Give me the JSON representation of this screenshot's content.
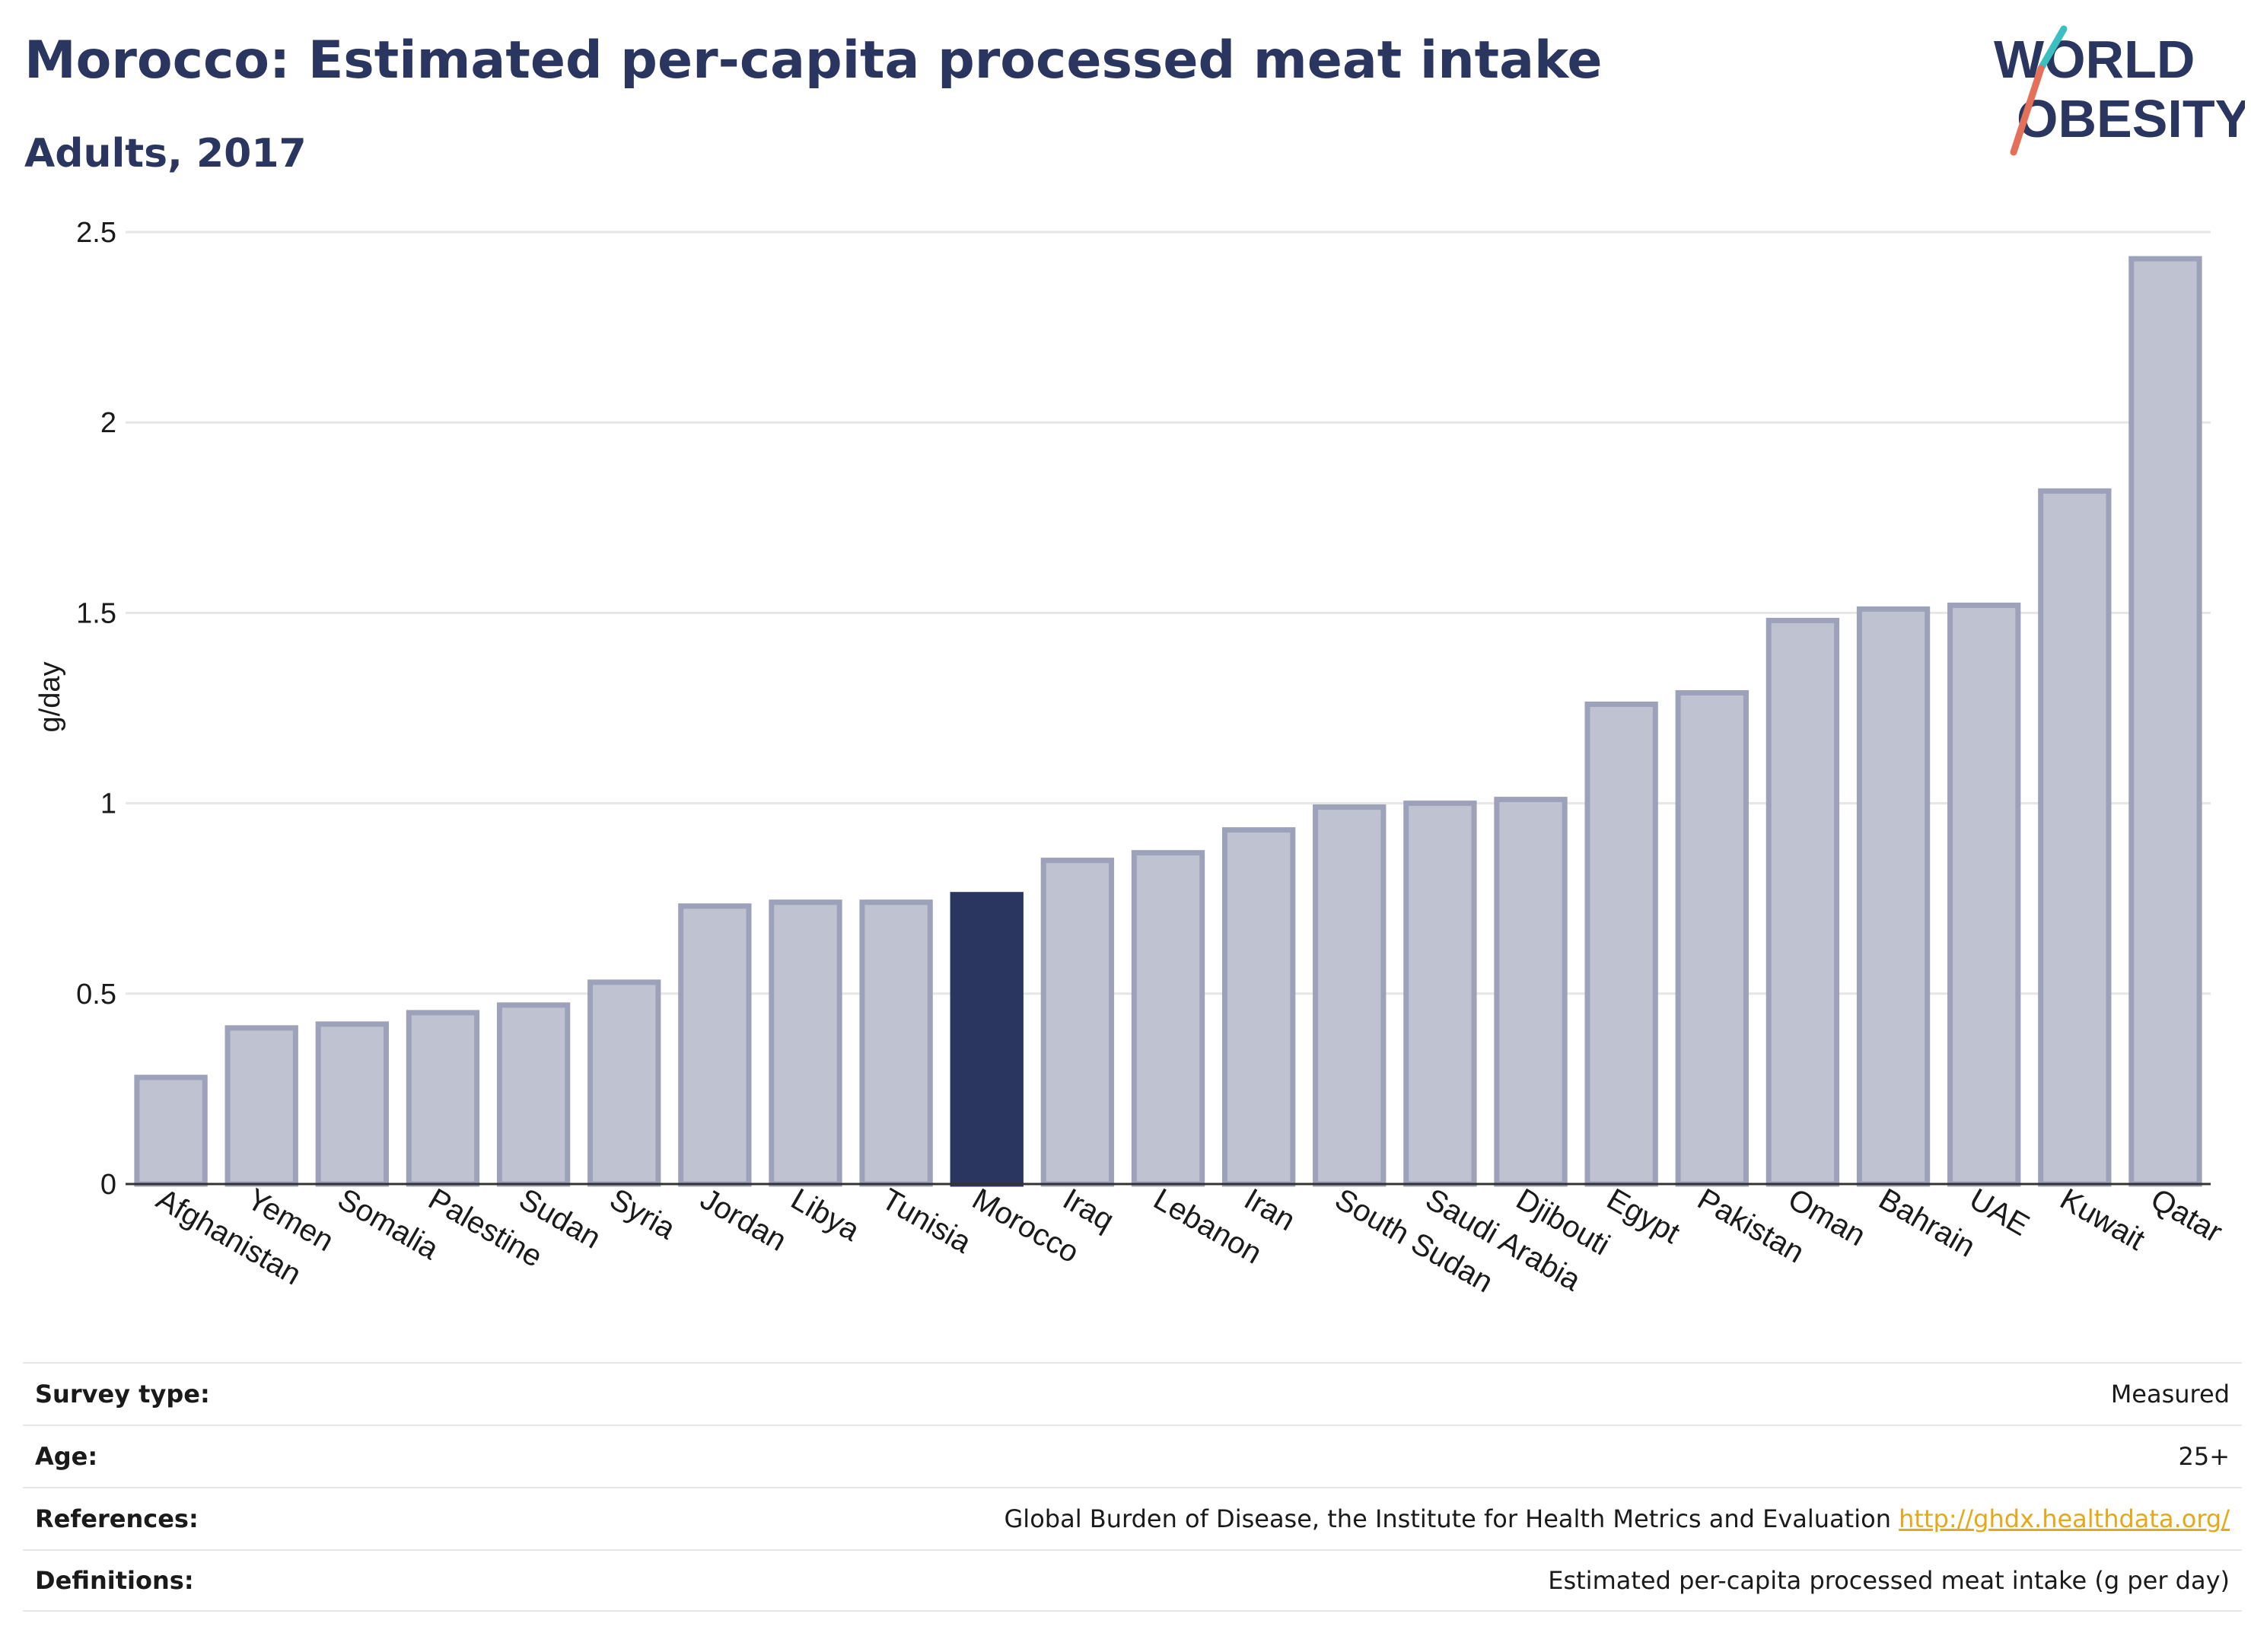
{
  "header": {
    "title": "Morocco: Estimated per-capita processed meat intake",
    "subtitle": "Adults, 2017"
  },
  "logo": {
    "line1": "WORLD",
    "line2": "OBESITY"
  },
  "chart_data": {
    "type": "bar",
    "ylabel": "g/day",
    "ylim": [
      0,
      2.5
    ],
    "yticks": [
      0,
      0.5,
      1,
      1.5,
      2,
      2.5
    ],
    "ytick_labels": [
      "0",
      "0.5",
      "1",
      "1.5",
      "2",
      "2.5"
    ],
    "categories": [
      "Afghanistan",
      "Yemen",
      "Somalia",
      "Palestine",
      "Sudan",
      "Syria",
      "Jordan",
      "Libya",
      "Tunisia",
      "Morocco",
      "Iraq",
      "Lebanon",
      "Iran",
      "South Sudan",
      "Saudi Arabia",
      "Djibouti",
      "Egypt",
      "Pakistan",
      "Oman",
      "Bahrain",
      "UAE",
      "Kuwait",
      "Qatar"
    ],
    "values": [
      0.28,
      0.41,
      0.42,
      0.45,
      0.47,
      0.53,
      0.73,
      0.74,
      0.74,
      0.76,
      0.85,
      0.87,
      0.93,
      0.99,
      1.0,
      1.01,
      1.26,
      1.29,
      1.48,
      1.51,
      1.52,
      1.82,
      2.43
    ],
    "highlight": "Morocco",
    "colors": {
      "bar": "#bfc2d0",
      "bar_stroke": "#9da2ba",
      "highlight": "#2a3560",
      "grid": "#e6e6e6",
      "axis": "#333333"
    },
    "grid": true
  },
  "info": [
    {
      "label": "Survey type:",
      "value": "Measured"
    },
    {
      "label": "Age:",
      "value": "25+"
    },
    {
      "label": "References:",
      "value": "Global Burden of Disease, the Institute for Health Metrics and Evaluation",
      "link": "http://ghdx.healthdata.org/"
    },
    {
      "label": "Definitions:",
      "value": "Estimated per-capita processed meat intake (g per day)"
    }
  ]
}
